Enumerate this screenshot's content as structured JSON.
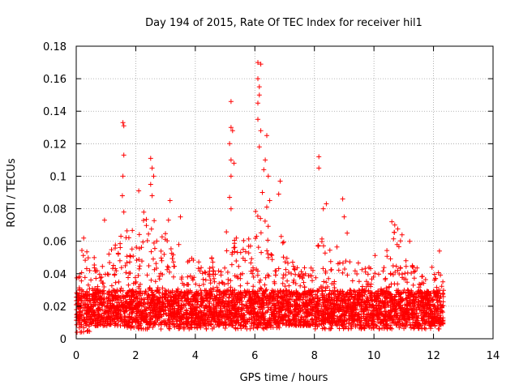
{
  "chart_data": {
    "type": "scatter",
    "title": "Day 194 of 2015, Rate Of TEC Index for receiver hil1",
    "xlabel": "GPS time / hours",
    "ylabel": "ROTI / TECUs",
    "xlim": [
      0,
      14
    ],
    "ylim": [
      0,
      0.18
    ],
    "x_ticks": [
      0,
      2,
      4,
      6,
      8,
      10,
      12,
      14
    ],
    "y_ticks": [
      0,
      0.02,
      0.04,
      0.06,
      0.08,
      0.1,
      0.12,
      0.14,
      0.16,
      0.18
    ],
    "y_tick_labels": [
      "0",
      "0.02",
      "0.04",
      "0.06",
      "0.08",
      "0.1",
      "0.12",
      "0.14",
      "0.16",
      "0.18"
    ],
    "x_tick_labels": [
      "0",
      "2",
      "4",
      "6",
      "8",
      "10",
      "12",
      "14"
    ],
    "grid": true,
    "marker": "+",
    "series_color": "#ff0000",
    "data_x_range": [
      0,
      12.35
    ],
    "notable_points": [
      {
        "x": 1.57,
        "y": 0.133
      },
      {
        "x": 1.6,
        "y": 0.131
      },
      {
        "x": 1.6,
        "y": 0.113
      },
      {
        "x": 1.57,
        "y": 0.1
      },
      {
        "x": 1.55,
        "y": 0.088
      },
      {
        "x": 1.6,
        "y": 0.078
      },
      {
        "x": 2.5,
        "y": 0.111
      },
      {
        "x": 2.55,
        "y": 0.105
      },
      {
        "x": 2.6,
        "y": 0.1
      },
      {
        "x": 2.5,
        "y": 0.095
      },
      {
        "x": 2.1,
        "y": 0.091
      },
      {
        "x": 2.55,
        "y": 0.088
      },
      {
        "x": 3.15,
        "y": 0.085
      },
      {
        "x": 5.2,
        "y": 0.146
      },
      {
        "x": 5.2,
        "y": 0.13
      },
      {
        "x": 5.25,
        "y": 0.128
      },
      {
        "x": 5.15,
        "y": 0.12
      },
      {
        "x": 5.2,
        "y": 0.11
      },
      {
        "x": 5.3,
        "y": 0.108
      },
      {
        "x": 5.2,
        "y": 0.1
      },
      {
        "x": 5.15,
        "y": 0.087
      },
      {
        "x": 5.2,
        "y": 0.08
      },
      {
        "x": 6.1,
        "y": 0.17
      },
      {
        "x": 6.2,
        "y": 0.169
      },
      {
        "x": 6.1,
        "y": 0.16
      },
      {
        "x": 6.15,
        "y": 0.155
      },
      {
        "x": 6.15,
        "y": 0.15
      },
      {
        "x": 6.1,
        "y": 0.145
      },
      {
        "x": 6.1,
        "y": 0.135
      },
      {
        "x": 6.2,
        "y": 0.128
      },
      {
        "x": 6.15,
        "y": 0.118
      },
      {
        "x": 6.4,
        "y": 0.125
      },
      {
        "x": 6.35,
        "y": 0.11
      },
      {
        "x": 6.3,
        "y": 0.104
      },
      {
        "x": 6.45,
        "y": 0.1
      },
      {
        "x": 6.25,
        "y": 0.09
      },
      {
        "x": 6.5,
        "y": 0.085
      },
      {
        "x": 6.85,
        "y": 0.097
      },
      {
        "x": 6.8,
        "y": 0.089
      },
      {
        "x": 6.4,
        "y": 0.081
      },
      {
        "x": 8.15,
        "y": 0.112
      },
      {
        "x": 8.15,
        "y": 0.105
      },
      {
        "x": 8.4,
        "y": 0.083
      },
      {
        "x": 8.3,
        "y": 0.08
      },
      {
        "x": 8.95,
        "y": 0.086
      },
      {
        "x": 9.0,
        "y": 0.075
      },
      {
        "x": 10.6,
        "y": 0.072
      },
      {
        "x": 10.7,
        "y": 0.07
      },
      {
        "x": 11.2,
        "y": 0.06
      },
      {
        "x": 0.95,
        "y": 0.073
      },
      {
        "x": 3.5,
        "y": 0.075
      },
      {
        "x": 3.1,
        "y": 0.073
      },
      {
        "x": 0.25,
        "y": 0.062
      },
      {
        "x": 9.1,
        "y": 0.065
      },
      {
        "x": 12.2,
        "y": 0.054
      }
    ],
    "envelope": [
      {
        "x_start": 0.0,
        "x_end": 0.5,
        "y_min": 0.004,
        "y_max": 0.055
      },
      {
        "x_start": 0.5,
        "x_end": 1.0,
        "y_min": 0.008,
        "y_max": 0.05
      },
      {
        "x_start": 1.0,
        "x_end": 1.5,
        "y_min": 0.008,
        "y_max": 0.065
      },
      {
        "x_start": 1.5,
        "x_end": 2.0,
        "y_min": 0.006,
        "y_max": 0.07
      },
      {
        "x_start": 2.0,
        "x_end": 2.5,
        "y_min": 0.006,
        "y_max": 0.078
      },
      {
        "x_start": 2.5,
        "x_end": 3.0,
        "y_min": 0.006,
        "y_max": 0.075
      },
      {
        "x_start": 3.0,
        "x_end": 3.5,
        "y_min": 0.006,
        "y_max": 0.065
      },
      {
        "x_start": 3.5,
        "x_end": 4.0,
        "y_min": 0.006,
        "y_max": 0.05
      },
      {
        "x_start": 4.0,
        "x_end": 4.5,
        "y_min": 0.006,
        "y_max": 0.048
      },
      {
        "x_start": 4.5,
        "x_end": 5.0,
        "y_min": 0.006,
        "y_max": 0.05
      },
      {
        "x_start": 5.0,
        "x_end": 5.5,
        "y_min": 0.006,
        "y_max": 0.068
      },
      {
        "x_start": 5.5,
        "x_end": 6.0,
        "y_min": 0.006,
        "y_max": 0.062
      },
      {
        "x_start": 6.0,
        "x_end": 6.5,
        "y_min": 0.006,
        "y_max": 0.08
      },
      {
        "x_start": 6.5,
        "x_end": 7.0,
        "y_min": 0.006,
        "y_max": 0.065
      },
      {
        "x_start": 7.0,
        "x_end": 7.5,
        "y_min": 0.008,
        "y_max": 0.05
      },
      {
        "x_start": 7.5,
        "x_end": 8.0,
        "y_min": 0.008,
        "y_max": 0.045
      },
      {
        "x_start": 8.0,
        "x_end": 8.5,
        "y_min": 0.006,
        "y_max": 0.062
      },
      {
        "x_start": 8.5,
        "x_end": 9.0,
        "y_min": 0.006,
        "y_max": 0.058
      },
      {
        "x_start": 9.0,
        "x_end": 9.5,
        "y_min": 0.006,
        "y_max": 0.05
      },
      {
        "x_start": 9.5,
        "x_end": 10.0,
        "y_min": 0.006,
        "y_max": 0.045
      },
      {
        "x_start": 10.0,
        "x_end": 10.5,
        "y_min": 0.006,
        "y_max": 0.055
      },
      {
        "x_start": 10.5,
        "x_end": 11.0,
        "y_min": 0.006,
        "y_max": 0.068
      },
      {
        "x_start": 11.0,
        "x_end": 11.5,
        "y_min": 0.006,
        "y_max": 0.048
      },
      {
        "x_start": 11.5,
        "x_end": 12.0,
        "y_min": 0.006,
        "y_max": 0.045
      },
      {
        "x_start": 12.0,
        "x_end": 12.35,
        "y_min": 0.006,
        "y_max": 0.042
      }
    ],
    "dense_band": {
      "y_min": 0.008,
      "y_max": 0.03
    }
  }
}
